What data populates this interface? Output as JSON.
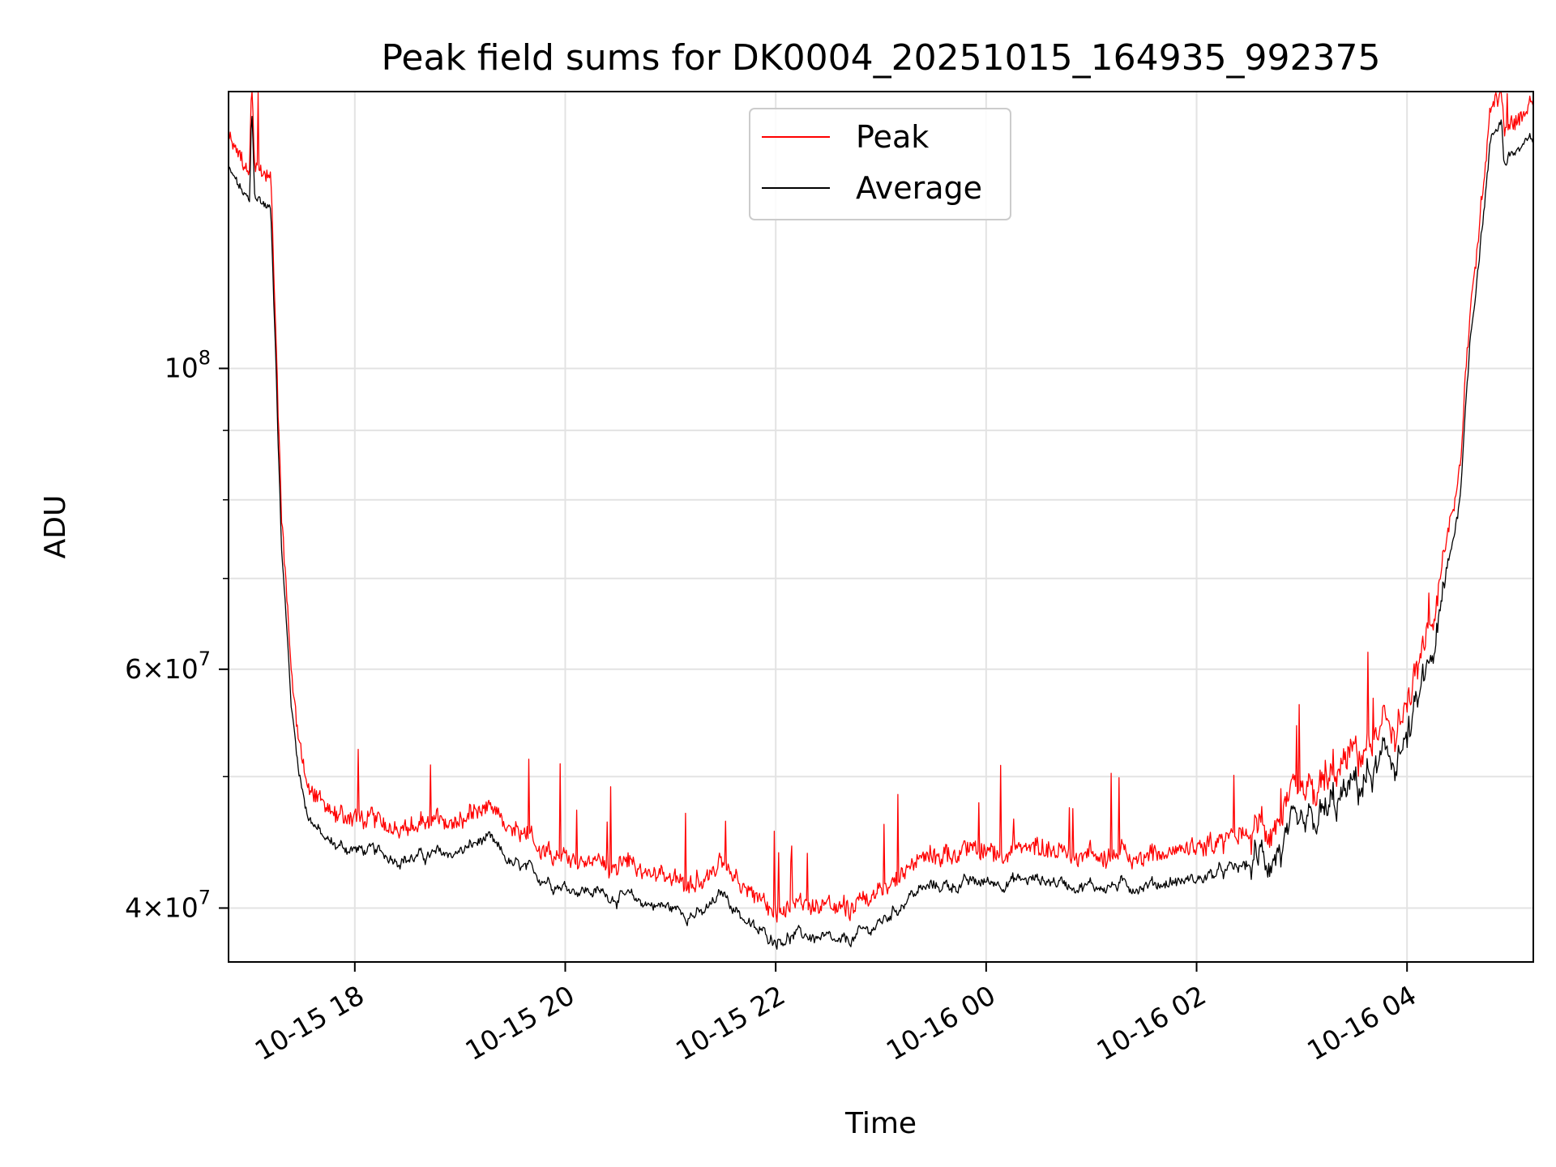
{
  "chart_data": {
    "type": "line",
    "title": "Peak field sums for DK0004_20251015_164935_992375",
    "xlabel": "Time",
    "ylabel": "ADU",
    "yscale": "log",
    "ylim": [
      36500000,
      160000000
    ],
    "xlim_hours": [
      16.8,
      29.2
    ],
    "grid": true,
    "legend_position": "top-center",
    "x_ticks": [
      {
        "label": "10-15 18",
        "hour": 18
      },
      {
        "label": "10-15 20",
        "hour": 20
      },
      {
        "label": "10-15 22",
        "hour": 22
      },
      {
        "label": "10-16 00",
        "hour": 24
      },
      {
        "label": "10-16 02",
        "hour": 26
      },
      {
        "label": "10-16 04",
        "hour": 28
      }
    ],
    "y_ticks_major": [
      {
        "value": 40000000,
        "mant": "4",
        "exp": "7"
      },
      {
        "value": 60000000,
        "mant": "6",
        "exp": "7"
      },
      {
        "value": 100000000,
        "mant": "",
        "exp": "8"
      }
    ],
    "y_ticks_minor": [
      50000000,
      70000000,
      80000000,
      90000000
    ],
    "series": [
      {
        "name": "Peak",
        "color": "#ff0000",
        "peak_offset": 0.018
      },
      {
        "name": "Average",
        "color": "#000000",
        "peak_offset": 0
      }
    ],
    "average_profile": {
      "hour": [
        16.8,
        16.95,
        17.0,
        17.02,
        17.05,
        17.1,
        17.2,
        17.25,
        17.3,
        17.4,
        17.45,
        17.5,
        17.55,
        17.7,
        17.8,
        18.0,
        18.5,
        19.0,
        19.25,
        19.5,
        20.0,
        20.5,
        21.0,
        21.3,
        21.5,
        21.8,
        22.0,
        22.3,
        22.5,
        22.6,
        23.0,
        23.3,
        23.5,
        24.0,
        24.5,
        25.0,
        25.5,
        26.0,
        26.5,
        27.0,
        27.5,
        27.8,
        28.0,
        28.1,
        28.3,
        28.5,
        28.6,
        28.8,
        28.9,
        28.92,
        29.0,
        29.2
      ],
      "adu": [
        140000000,
        134000000,
        132000000,
        155000000,
        134000000,
        133000000,
        131000000,
        102000000,
        75000000,
        56000000,
        52000000,
        49000000,
        47000000,
        45000000,
        44500000,
        44200000,
        43500000,
        44000000,
        45000000,
        43000000,
        41500000,
        40800000,
        40000000,
        39500000,
        41000000,
        38500000,
        38000000,
        38200000,
        37800000,
        37500000,
        39000000,
        41000000,
        41500000,
        41800000,
        42000000,
        41500000,
        41600000,
        42000000,
        43000000,
        45000000,
        49000000,
        51000000,
        53000000,
        56000000,
        64000000,
        80000000,
        105000000,
        148000000,
        153000000,
        142000000,
        144000000,
        147000000
      ]
    }
  }
}
